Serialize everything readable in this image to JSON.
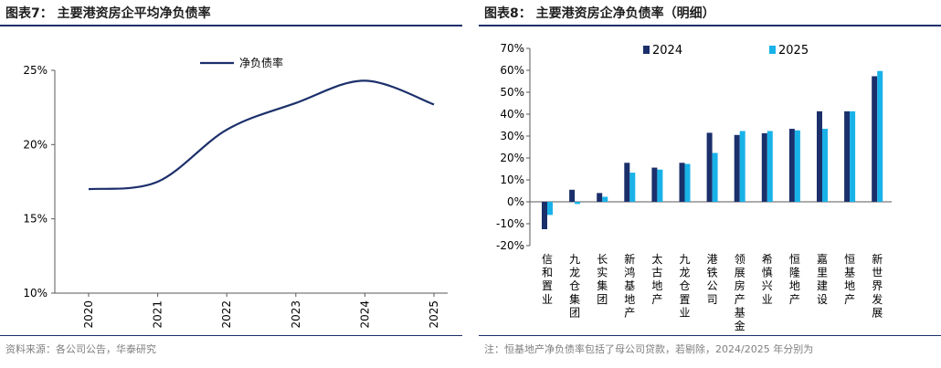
{
  "left": {
    "title": "图表7：  主要港资房企平均净负债率",
    "footnote": "资料来源：各公司公告，华泰研究"
  },
  "right": {
    "title": "图表8：  主要港资房企净负债率（明细）",
    "footnote": "注：恒基地产净负债率包括了母公司贷款，若剔除，2024/2025 年分别为"
  },
  "colors": {
    "line": "#1b2f6b",
    "series_2024": "#1b2f6b",
    "series_2025": "#19b2e8",
    "rule": "#1b2f6b",
    "axis": "#595959"
  },
  "chart_data": [
    {
      "type": "line",
      "x": [
        "2020",
        "2021",
        "2022",
        "2023",
        "2024",
        "2025"
      ],
      "series": [
        {
          "name": "净负债率",
          "values": [
            17.0,
            17.5,
            21.0,
            22.8,
            24.3,
            22.7
          ]
        }
      ],
      "ylim": [
        10,
        25
      ],
      "yticks": [
        "10%",
        "15%",
        "20%",
        "25%"
      ],
      "legend": "top-center",
      "grid": false
    },
    {
      "type": "bar",
      "categories": [
        "信和置业",
        "九龙仓集团",
        "长实集团",
        "新鸿基地产",
        "太古地产",
        "九龙仓置业",
        "港铁公司",
        "领展房产基金",
        "希慎兴业",
        "恒隆地产",
        "嘉里建设",
        "恒基地产",
        "新世界发展"
      ],
      "series": [
        {
          "name": "2024",
          "values": [
            -12.5,
            5.5,
            4.0,
            17.8,
            15.6,
            17.8,
            31.5,
            30.5,
            31.3,
            33.3,
            41.3,
            41.3,
            57.3
          ]
        },
        {
          "name": "2025",
          "values": [
            -6.0,
            -1.0,
            2.3,
            13.3,
            14.7,
            17.3,
            22.3,
            32.3,
            32.3,
            32.6,
            33.3,
            41.3,
            59.7
          ]
        }
      ],
      "ylim": [
        -20,
        70
      ],
      "yticks": [
        "-20%",
        "-10%",
        "0%",
        "10%",
        "20%",
        "30%",
        "40%",
        "50%",
        "60%",
        "70%"
      ],
      "legend": "top-left",
      "grid": false
    }
  ]
}
